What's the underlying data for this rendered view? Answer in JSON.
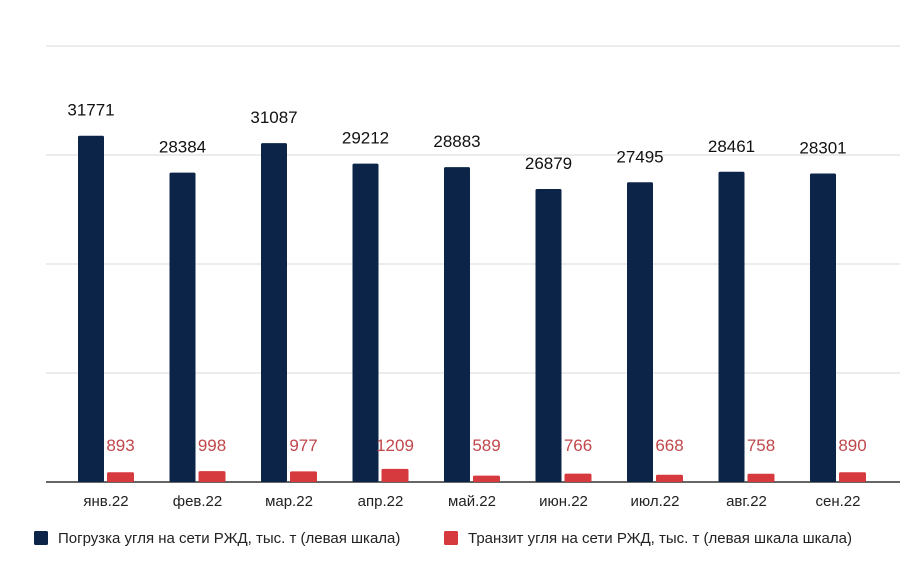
{
  "chart_data": {
    "type": "bar",
    "title": "",
    "xlabel": "",
    "ylabel": "",
    "ylim": [
      0,
      40000
    ],
    "grid": true,
    "legend_position": "bottom",
    "categories": [
      "янв.22",
      "фев.22",
      "мар.22",
      "апр.22",
      "май.22",
      "июн.22",
      "июл.22",
      "авг.22",
      "сен.22"
    ],
    "series": [
      {
        "name": "Погрузка угля на сети РЖД, тыс. т (левая шкала)",
        "color": "#0b2447",
        "label_color": "#111111",
        "values": [
          31771,
          28384,
          31087,
          29212,
          28883,
          26879,
          27495,
          28461,
          28301
        ]
      },
      {
        "name": "Транзит угля на сети РЖД, тыс. т (левая шкала шкала)",
        "color": "#d63a3f",
        "label_color": "#c0474b",
        "values": [
          893,
          998,
          977,
          1209,
          589,
          766,
          668,
          758,
          890
        ]
      }
    ]
  }
}
